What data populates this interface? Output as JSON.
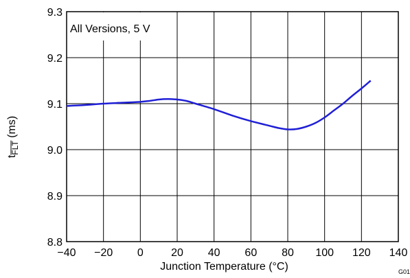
{
  "chart_data": {
    "type": "line",
    "annotation": "All Versions, 5 V",
    "xlabel": "Junction Temperature (°C)",
    "ylabel_main": "t",
    "ylabel_sub": "FLT",
    "ylabel_unit": " (ms)",
    "figure_id": "G01",
    "xlim": [
      -40,
      140
    ],
    "ylim": [
      8.8,
      9.3
    ],
    "x_ticks": [
      -40,
      -20,
      0,
      20,
      40,
      60,
      80,
      100,
      120,
      140
    ],
    "x_tick_labels": [
      "−40",
      "−20",
      "0",
      "20",
      "40",
      "60",
      "80",
      "100",
      "120",
      "140"
    ],
    "y_ticks": [
      8.8,
      8.9,
      9.0,
      9.1,
      9.2,
      9.3
    ],
    "y_tick_labels": [
      "8.8",
      "8.9",
      "9.0",
      "9.1",
      "9.2",
      "9.3"
    ],
    "grid": true,
    "series": [
      {
        "color": "#1f1fd6",
        "x": [
          -40,
          -30,
          -20,
          -10,
          0,
          5,
          10,
          15,
          20,
          25,
          30,
          40,
          50,
          60,
          70,
          75,
          80,
          85,
          90,
          95,
          100,
          105,
          110,
          115,
          120,
          125
        ],
        "y": [
          9.095,
          9.097,
          9.1,
          9.102,
          9.104,
          9.106,
          9.109,
          9.11,
          9.109,
          9.106,
          9.1,
          9.088,
          9.074,
          9.062,
          9.052,
          9.047,
          9.044,
          9.045,
          9.05,
          9.058,
          9.07,
          9.085,
          9.1,
          9.117,
          9.133,
          9.15
        ]
      }
    ]
  }
}
